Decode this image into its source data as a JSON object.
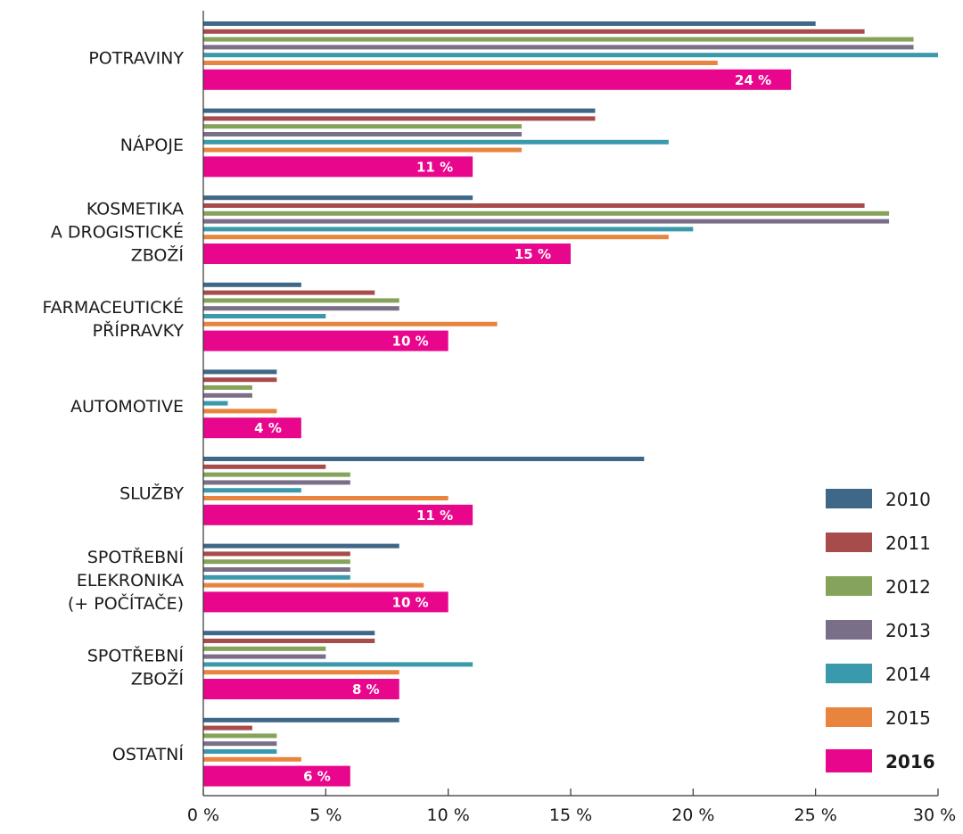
{
  "chart_data": {
    "type": "bar",
    "orientation": "horizontal",
    "categories": [
      [
        "POTRAVINY"
      ],
      [
        "NÁPOJE"
      ],
      [
        "KOSMETIKA",
        "A DROGISTICKÉ",
        "ZBOŽÍ"
      ],
      [
        "FARMACEUTICKÉ",
        "PŘÍPRAVKY"
      ],
      [
        "AUTOMOTIVE"
      ],
      [
        "SLUŽBY"
      ],
      [
        "SPOTŘEBNÍ",
        "ELEKRONIKA",
        "(+ POČÍTAČE)"
      ],
      [
        "SPOTŘEBNÍ",
        "ZBOŽÍ"
      ],
      [
        "OSTATNÍ"
      ]
    ],
    "series": [
      {
        "name": "2010",
        "color": "#3f6787",
        "values": [
          25,
          16,
          11,
          4,
          3,
          18,
          8,
          7,
          8
        ]
      },
      {
        "name": "2011",
        "color": "#a84b4b",
        "values": [
          27,
          16,
          27,
          7,
          3,
          5,
          6,
          7,
          2
        ]
      },
      {
        "name": "2012",
        "color": "#85a35a",
        "values": [
          29,
          13,
          28,
          8,
          2,
          6,
          6,
          5,
          3
        ]
      },
      {
        "name": "2013",
        "color": "#7b6e88",
        "values": [
          29,
          13,
          28,
          8,
          2,
          6,
          6,
          5,
          3
        ]
      },
      {
        "name": "2014",
        "color": "#3a9aab",
        "values": [
          30,
          19,
          20,
          5,
          1,
          4,
          6,
          11,
          3
        ]
      },
      {
        "name": "2015",
        "color": "#e8843e",
        "values": [
          21,
          13,
          19,
          12,
          3,
          10,
          9,
          8,
          4
        ]
      },
      {
        "name": "2016",
        "color": "#e8068c",
        "values": [
          24,
          11,
          15,
          10,
          4,
          11,
          10,
          8,
          6
        ],
        "highlight": true
      }
    ],
    "data_labels": [
      "24 %",
      "11 %",
      "15 %",
      "10 %",
      "4 %",
      "11 %",
      "10 %",
      "8 %",
      "6 %"
    ],
    "x_ticks": [
      0,
      5,
      10,
      15,
      20,
      25,
      30
    ],
    "x_tick_labels": [
      "0 %",
      "5 %",
      "10 %",
      "15 %",
      "20 %",
      "25 %",
      "30 %"
    ],
    "xlim": [
      0,
      30
    ],
    "grid": false,
    "legend_position": "bottom-right",
    "title": "",
    "xlabel": "",
    "ylabel": ""
  }
}
